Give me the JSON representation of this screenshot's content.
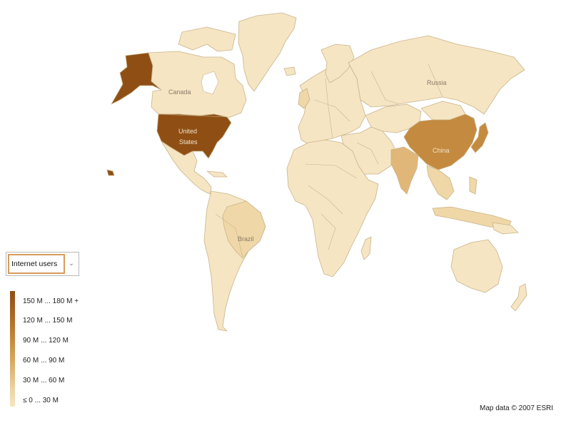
{
  "map": {
    "colors": {
      "land_base": "#f6e5c3",
      "land_low": "#efd7a7",
      "land_mid": "#e0b778",
      "land_high": "#c48a3f",
      "land_top": "#8f4f14",
      "border": "#c9b48a"
    },
    "country_labels": {
      "canada": "Canada",
      "united_states_line1": "United",
      "united_states_line2": "States",
      "russia": "Russia",
      "china": "China",
      "brazil": "Brazil"
    }
  },
  "metric_selector": {
    "selected": "Internet users",
    "arrow_icon": "chevron-down-icon"
  },
  "legend": {
    "items": [
      "150 M ... 180 M +",
      "120 M ... 150 M",
      "90 M ... 120 M",
      "60 M ... 90 M",
      "30 M ... 60 M",
      "≤ 0 ... 30 M"
    ]
  },
  "footer": {
    "credit": "Map data © 2007 ESRI"
  }
}
